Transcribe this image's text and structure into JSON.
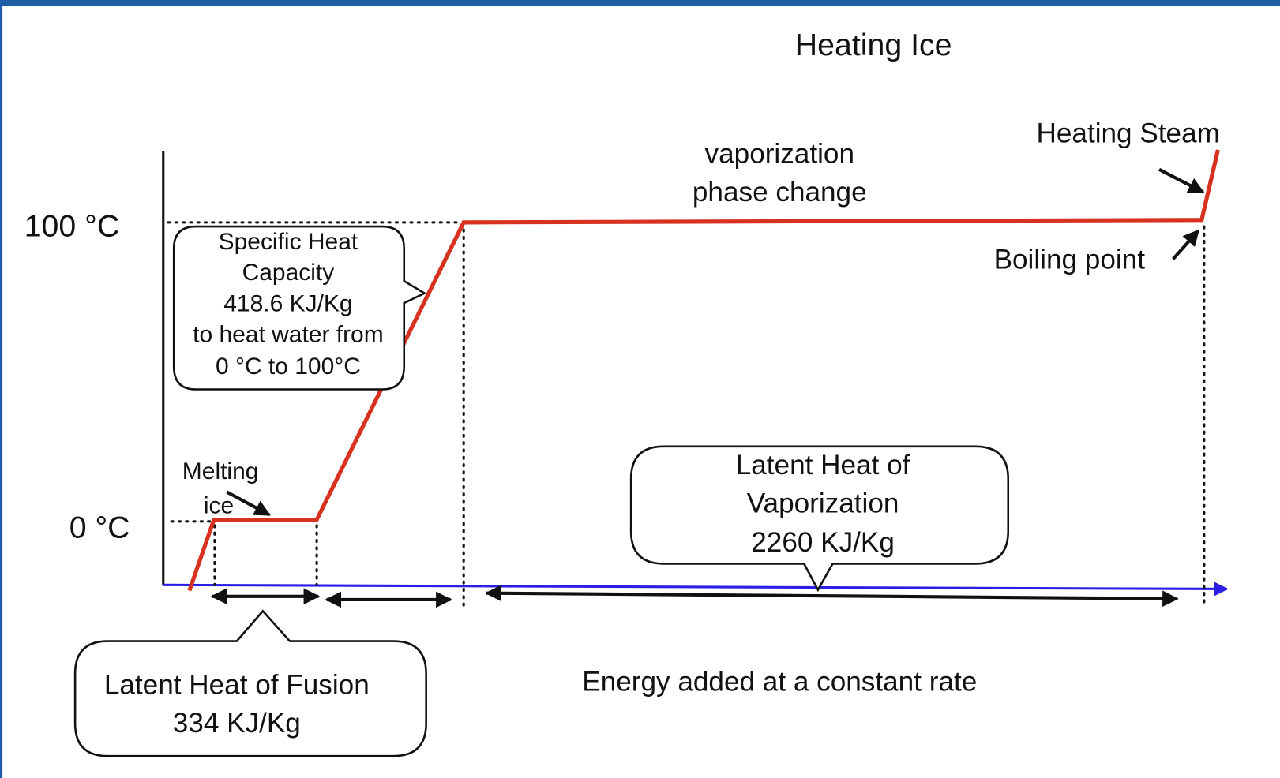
{
  "title": "Heating Ice",
  "axis_labels": {
    "top": "100 °C",
    "bottom": "0 °C",
    "x": "Energy added at a constant rate"
  },
  "annotations": {
    "vaporization": [
      "vaporization",
      "phase change"
    ],
    "heating_steam": "Heating Steam",
    "boiling_point": "Boiling point",
    "melting": [
      "Melting",
      "ice"
    ]
  },
  "callouts": {
    "specific_heat": [
      "Specific Heat",
      "Capacity",
      "418.6 KJ/Kg",
      "to heat water from",
      "0 °C to 100°C"
    ],
    "vaporization_heat": [
      "Latent Heat of",
      "Vaporization",
      "2260 KJ/Kg"
    ],
    "fusion_heat": [
      "Latent Heat of Fusion",
      "334 KJ/Kg"
    ]
  }
}
